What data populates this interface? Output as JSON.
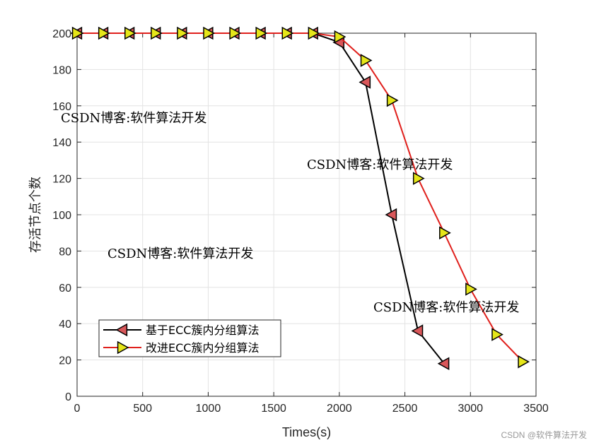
{
  "chart_data": {
    "type": "line",
    "xlabel": "Times(s)",
    "ylabel": "存活节点个数",
    "xlim": [
      0,
      3500
    ],
    "ylim": [
      0,
      200
    ],
    "xticks": [
      0,
      500,
      1000,
      1500,
      2000,
      2500,
      3000,
      3500
    ],
    "yticks": [
      0,
      20,
      40,
      60,
      80,
      100,
      120,
      140,
      160,
      180,
      200
    ],
    "grid": true,
    "legend_position": "bottom-left",
    "series": [
      {
        "name": "基于ECC簇内分组算法",
        "line_color": "#000000",
        "marker": "triangle-left",
        "marker_color": "#d9575a",
        "x": [
          0,
          200,
          400,
          600,
          800,
          1000,
          1200,
          1400,
          1600,
          1800,
          2000,
          2200,
          2400,
          2600,
          2800
        ],
        "y": [
          200,
          200,
          200,
          200,
          200,
          200,
          200,
          200,
          200,
          200,
          195,
          173,
          100,
          36,
          18
        ]
      },
      {
        "name": "改进ECC簇内分组算法",
        "line_color": "#e0201c",
        "marker": "triangle-right",
        "marker_color": "#e6e619",
        "x": [
          0,
          200,
          400,
          600,
          800,
          1000,
          1200,
          1400,
          1600,
          1800,
          2000,
          2200,
          2400,
          2600,
          2800,
          3000,
          3200,
          3400
        ],
        "y": [
          200,
          200,
          200,
          200,
          200,
          200,
          200,
          200,
          200,
          200,
          198,
          185,
          163,
          120,
          90,
          59,
          34,
          19
        ]
      }
    ]
  },
  "watermarks": [
    {
      "text": "CSDN博客:软件算法开发",
      "color": "#f08a8a"
    },
    {
      "text": "CSDN博客:软件算法开发",
      "color": "#8a8af0"
    },
    {
      "text": "CSDN博客:软件算法开发",
      "color": "#f5c890"
    },
    {
      "text": "CSDN博客:软件算法开发",
      "color": "#b0b0b0"
    }
  ],
  "credit": "CSDN @软件算法开发"
}
